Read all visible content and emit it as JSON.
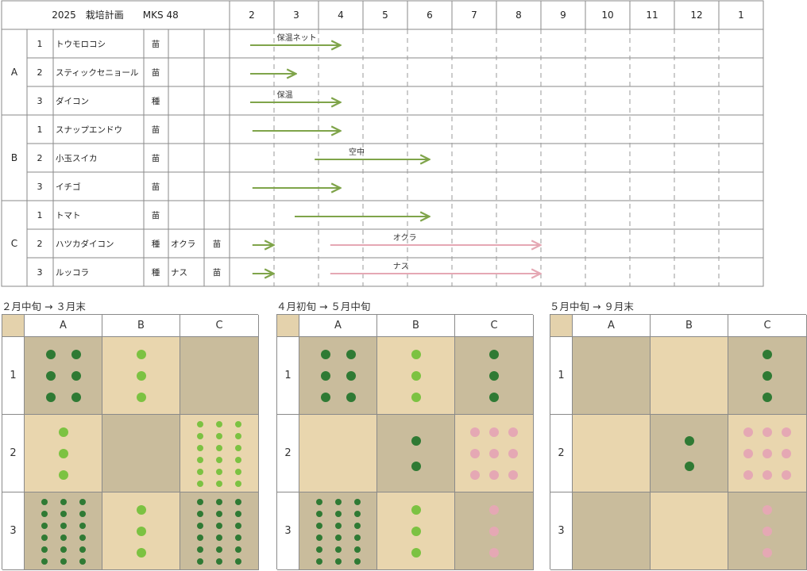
{
  "colors": {
    "green_light": "#7cc242",
    "green_dark": "#2f7a34",
    "pink": "#e5a8b4",
    "arrow_green": "#7fa44a",
    "arrow_pink": "#e5a8b4",
    "bed_light": "#e9d6ae",
    "bed_dark": "#c9bc9c",
    "corner": "#e4d2ac"
  },
  "chart_data": {
    "type": "table",
    "title": "2025　栽培計画　　MKS 48",
    "months": [
      "2",
      "3",
      "4",
      "5",
      "6",
      "7",
      "8",
      "9",
      "10",
      "11",
      "12",
      "1"
    ],
    "groups": [
      "A",
      "B",
      "C"
    ],
    "rows": [
      {
        "group": "A",
        "num": "1",
        "crop": "トウモロコシ",
        "kind": "苗",
        "crop2": "",
        "kind2": "",
        "arrows": [
          {
            "start": 2.0,
            "end": 4.5,
            "color": "green",
            "label": "保温ネット"
          }
        ]
      },
      {
        "group": "A",
        "num": "2",
        "crop": "スティックセニョール",
        "kind": "苗",
        "crop2": "",
        "kind2": "",
        "arrows": [
          {
            "start": 2.0,
            "end": 3.5,
            "color": "green",
            "label": ""
          }
        ]
      },
      {
        "group": "A",
        "num": "3",
        "crop": "ダイコン",
        "kind": "種",
        "crop2": "",
        "kind2": "",
        "arrows": [
          {
            "start": 2.0,
            "end": 4.5,
            "color": "green",
            "label": "保温"
          }
        ]
      },
      {
        "group": "B",
        "num": "1",
        "crop": "スナップエンドウ",
        "kind": "苗",
        "crop2": "",
        "kind2": "",
        "arrows": [
          {
            "start": 2.05,
            "end": 4.5,
            "color": "green",
            "label": ""
          }
        ]
      },
      {
        "group": "B",
        "num": "2",
        "crop": "小玉スイカ",
        "kind": "苗",
        "crop2": "",
        "kind2": "",
        "arrows": [
          {
            "start": 3.45,
            "end": 6.5,
            "color": "green",
            "label": "空中"
          }
        ]
      },
      {
        "group": "B",
        "num": "3",
        "crop": "イチゴ",
        "kind": "苗",
        "crop2": "",
        "kind2": "",
        "arrows": [
          {
            "start": 2.05,
            "end": 4.5,
            "color": "green",
            "label": ""
          }
        ]
      },
      {
        "group": "C",
        "num": "1",
        "crop": "トマト",
        "kind": "苗",
        "crop2": "",
        "kind2": "",
        "arrows": [
          {
            "start": 3.0,
            "end": 6.5,
            "color": "green",
            "label": ""
          }
        ]
      },
      {
        "group": "C",
        "num": "2",
        "crop": "ハツカダイコン",
        "kind": "種",
        "crop2": "オクラ",
        "kind2": "苗",
        "arrows": [
          {
            "start": 2.05,
            "end": 3.0,
            "color": "green",
            "label": ""
          },
          {
            "start": 3.8,
            "end": 9.0,
            "color": "pink",
            "label": "オクラ"
          }
        ]
      },
      {
        "group": "C",
        "num": "3",
        "crop": "ルッコラ",
        "kind": "種",
        "crop2": "ナス",
        "kind2": "苗",
        "arrows": [
          {
            "start": 2.05,
            "end": 3.0,
            "color": "green",
            "label": ""
          },
          {
            "start": 3.8,
            "end": 9.0,
            "color": "pink",
            "label": "ナス"
          }
        ]
      }
    ]
  },
  "phases": [
    {
      "title": "２月中旬 → ３月末",
      "cols": [
        "A",
        "B",
        "C"
      ],
      "rows": [
        "1",
        "2",
        "3"
      ],
      "cells": [
        [
          {
            "bg": "dark",
            "dots": {
              "cols": 2,
              "rows": 3,
              "color": "green_dark"
            }
          },
          {
            "bg": "light",
            "dots": {
              "cols": 1,
              "rows": 3,
              "color": "green_light"
            }
          },
          {
            "bg": "dark",
            "dots": null
          }
        ],
        [
          {
            "bg": "light",
            "dots": {
              "cols": 1,
              "rows": 3,
              "color": "green_light"
            }
          },
          {
            "bg": "dark",
            "dots": null
          },
          {
            "bg": "light",
            "dots": {
              "cols": 3,
              "rows": 6,
              "color": "green_light"
            }
          }
        ],
        [
          {
            "bg": "dark",
            "dots": {
              "cols": 3,
              "rows": 6,
              "color": "green_dark"
            }
          },
          {
            "bg": "light",
            "dots": {
              "cols": 1,
              "rows": 3,
              "color": "green_light"
            }
          },
          {
            "bg": "dark",
            "dots": {
              "cols": 3,
              "rows": 6,
              "color": "green_dark"
            }
          }
        ]
      ]
    },
    {
      "title": "４月初旬 → ５月中旬",
      "cols": [
        "A",
        "B",
        "C"
      ],
      "rows": [
        "1",
        "2",
        "3"
      ],
      "cells": [
        [
          {
            "bg": "dark",
            "dots": {
              "cols": 2,
              "rows": 3,
              "color": "green_dark"
            }
          },
          {
            "bg": "light",
            "dots": {
              "cols": 1,
              "rows": 3,
              "color": "green_light"
            }
          },
          {
            "bg": "dark",
            "dots": {
              "cols": 1,
              "rows": 3,
              "color": "green_dark"
            }
          }
        ],
        [
          {
            "bg": "light",
            "dots": null
          },
          {
            "bg": "dark",
            "dots": {
              "cols": 1,
              "rows": 2,
              "color": "green_dark"
            }
          },
          {
            "bg": "light",
            "dots": {
              "cols": 3,
              "rows": 3,
              "color": "pink"
            }
          }
        ],
        [
          {
            "bg": "dark",
            "dots": {
              "cols": 3,
              "rows": 6,
              "color": "green_dark"
            }
          },
          {
            "bg": "light",
            "dots": {
              "cols": 1,
              "rows": 3,
              "color": "green_light"
            }
          },
          {
            "bg": "dark",
            "dots": {
              "cols": 1,
              "rows": 3,
              "color": "pink"
            }
          }
        ]
      ]
    },
    {
      "title": "５月中旬 → ９月末",
      "cols": [
        "A",
        "B",
        "C"
      ],
      "rows": [
        "1",
        "2",
        "3"
      ],
      "cells": [
        [
          {
            "bg": "dark",
            "dots": null
          },
          {
            "bg": "light",
            "dots": null
          },
          {
            "bg": "dark",
            "dots": {
              "cols": 1,
              "rows": 3,
              "color": "green_dark"
            }
          }
        ],
        [
          {
            "bg": "light",
            "dots": null
          },
          {
            "bg": "dark",
            "dots": {
              "cols": 1,
              "rows": 2,
              "color": "green_dark"
            }
          },
          {
            "bg": "light",
            "dots": {
              "cols": 3,
              "rows": 3,
              "color": "pink"
            }
          }
        ],
        [
          {
            "bg": "dark",
            "dots": null
          },
          {
            "bg": "light",
            "dots": null
          },
          {
            "bg": "dark",
            "dots": {
              "cols": 1,
              "rows": 3,
              "color": "pink"
            }
          }
        ]
      ]
    }
  ]
}
